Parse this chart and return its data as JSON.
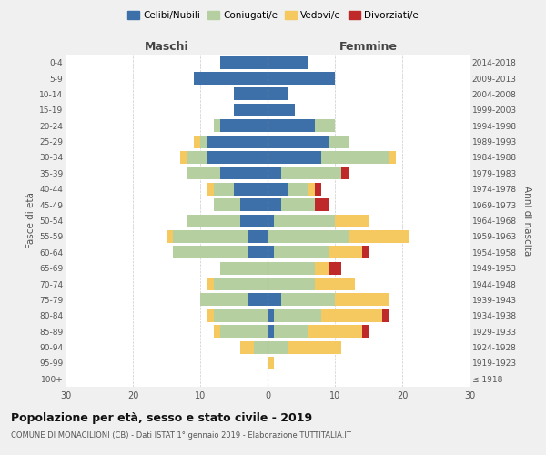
{
  "age_groups": [
    "100+",
    "95-99",
    "90-94",
    "85-89",
    "80-84",
    "75-79",
    "70-74",
    "65-69",
    "60-64",
    "55-59",
    "50-54",
    "45-49",
    "40-44",
    "35-39",
    "30-34",
    "25-29",
    "20-24",
    "15-19",
    "10-14",
    "5-9",
    "0-4"
  ],
  "birth_years": [
    "≤ 1918",
    "1919-1923",
    "1924-1928",
    "1929-1933",
    "1934-1938",
    "1939-1943",
    "1944-1948",
    "1949-1953",
    "1954-1958",
    "1959-1963",
    "1964-1968",
    "1969-1973",
    "1974-1978",
    "1979-1983",
    "1984-1988",
    "1989-1993",
    "1994-1998",
    "1999-2003",
    "2004-2008",
    "2009-2013",
    "2014-2018"
  ],
  "males": {
    "celibi": [
      0,
      0,
      0,
      0,
      0,
      3,
      0,
      0,
      3,
      3,
      4,
      4,
      5,
      7,
      9,
      9,
      7,
      5,
      5,
      11,
      7
    ],
    "coniugati": [
      0,
      0,
      2,
      7,
      8,
      7,
      8,
      7,
      11,
      11,
      8,
      4,
      3,
      5,
      3,
      1,
      1,
      0,
      0,
      0,
      0
    ],
    "vedovi": [
      0,
      0,
      2,
      1,
      1,
      0,
      1,
      0,
      0,
      1,
      0,
      0,
      1,
      0,
      1,
      1,
      0,
      0,
      0,
      0,
      0
    ],
    "divorziati": [
      0,
      0,
      0,
      0,
      0,
      0,
      0,
      0,
      0,
      0,
      0,
      0,
      0,
      0,
      0,
      0,
      0,
      0,
      0,
      0,
      0
    ]
  },
  "females": {
    "nubili": [
      0,
      0,
      0,
      1,
      1,
      2,
      0,
      0,
      1,
      0,
      1,
      2,
      3,
      2,
      8,
      9,
      7,
      4,
      3,
      10,
      6
    ],
    "coniugate": [
      0,
      0,
      3,
      5,
      7,
      8,
      7,
      7,
      8,
      12,
      9,
      5,
      3,
      9,
      10,
      3,
      3,
      0,
      0,
      0,
      0
    ],
    "vedove": [
      0,
      1,
      8,
      8,
      9,
      8,
      6,
      2,
      5,
      9,
      5,
      0,
      1,
      0,
      1,
      0,
      0,
      0,
      0,
      0,
      0
    ],
    "divorziate": [
      0,
      0,
      0,
      1,
      1,
      0,
      0,
      2,
      1,
      0,
      0,
      2,
      1,
      1,
      0,
      0,
      0,
      0,
      0,
      0,
      0
    ]
  },
  "colors": {
    "celibi": "#3d6fa8",
    "coniugati": "#b5cfa0",
    "vedovi": "#f5c860",
    "divorziati": "#c0292a"
  },
  "xlim": 30,
  "title": "Popolazione per età, sesso e stato civile - 2019",
  "subtitle": "COMUNE DI MONACILIONI (CB) - Dati ISTAT 1° gennaio 2019 - Elaborazione TUTTITALIA.IT",
  "ylabel_left": "Fasce di età",
  "ylabel_right": "Anni di nascita",
  "xlabel_left": "Maschi",
  "xlabel_right": "Femmine",
  "bg_color": "#f0f0f0",
  "plot_bg_color": "#ffffff"
}
